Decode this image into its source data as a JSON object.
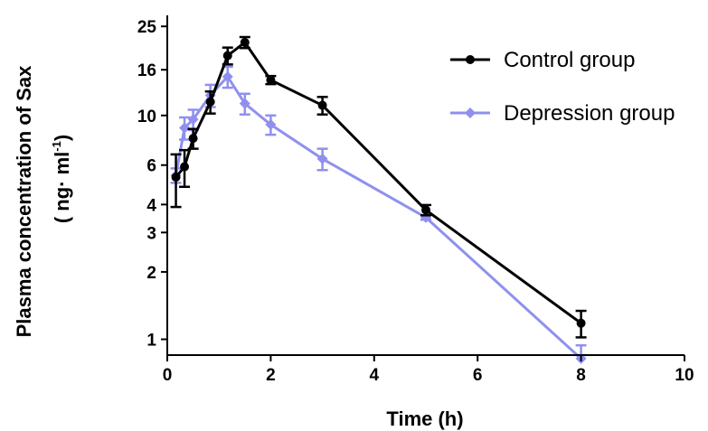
{
  "chart_data": {
    "type": "line",
    "xlabel": "Time (h)",
    "ylabel_line1": "Plasma concentration of Sax",
    "ylabel_line2_prefix": "( ng· ml",
    "ylabel_line2_sup": "-1",
    "ylabel_line2_suffix": ")",
    "xlim": [
      0,
      10
    ],
    "x_ticks": [
      "0",
      "2",
      "4",
      "6",
      "8",
      "10"
    ],
    "y_scale": "log",
    "ylim": [
      0.85,
      28
    ],
    "y_ticks": [
      "1",
      "2",
      "3",
      "4",
      "6",
      "10",
      "16",
      "25"
    ],
    "legend_position": "top-right",
    "series": [
      {
        "name": "Control group",
        "color": "#000000",
        "marker": "circle",
        "x": [
          0.167,
          0.333,
          0.5,
          0.833,
          1.167,
          1.5,
          2,
          3,
          5,
          8
        ],
        "y": [
          5.3,
          5.9,
          7.9,
          11.5,
          18.5,
          21.2,
          14.4,
          11.1,
          3.78,
          1.18
        ],
        "err": [
          1.4,
          1.1,
          0.8,
          1.3,
          1.6,
          1.2,
          0.6,
          1.0,
          0.2,
          0.16
        ]
      },
      {
        "name": "Depression group",
        "color": "#8f90ee",
        "marker": "diamond",
        "x": [
          0.167,
          0.333,
          0.5,
          0.833,
          1.167,
          1.5,
          2,
          3,
          5,
          8
        ],
        "y": [
          5.4,
          8.8,
          9.6,
          12.3,
          14.9,
          11.3,
          9.1,
          6.4,
          3.5,
          0.82
        ],
        "err": [
          0.4,
          1.0,
          1.0,
          1.4,
          1.6,
          1.2,
          0.9,
          0.7,
          0.08,
          0.12
        ]
      }
    ]
  }
}
